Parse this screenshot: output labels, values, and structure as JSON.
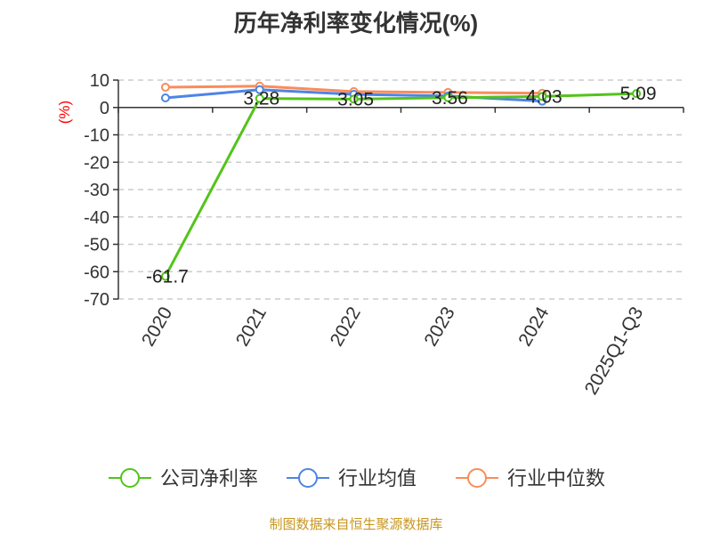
{
  "title": "历年净利率变化情况(%)",
  "source": "制图数据来自恒生聚源数据库",
  "chart_data": {
    "type": "line",
    "title": "历年净利率变化情况(%)",
    "ylabel": "(%)",
    "categories": [
      "2020",
      "2021",
      "2022",
      "2023",
      "2024",
      "2025Q1-Q3"
    ],
    "ylim": [
      -70,
      10
    ],
    "yticks": [
      10,
      0,
      -10,
      -20,
      -30,
      -40,
      -50,
      -60,
      -70
    ],
    "grid": true,
    "legend_position": "bottom",
    "series": [
      {
        "name": "公司净利率",
        "color": "#52c41a",
        "values": [
          -61.7,
          3.28,
          3.05,
          3.56,
          4.03,
          5.09
        ],
        "labels": [
          "-61.7",
          "3.28",
          "3.05",
          "3.56",
          "4.03",
          "5.09"
        ]
      },
      {
        "name": "行业均值",
        "color": "#4e84e6",
        "values": [
          3.5,
          6.5,
          4.8,
          4.2,
          2.3,
          null
        ]
      },
      {
        "name": "行业中位数",
        "color": "#fa8c5a",
        "values": [
          7.4,
          7.8,
          5.8,
          5.5,
          5.2,
          null
        ]
      }
    ]
  }
}
